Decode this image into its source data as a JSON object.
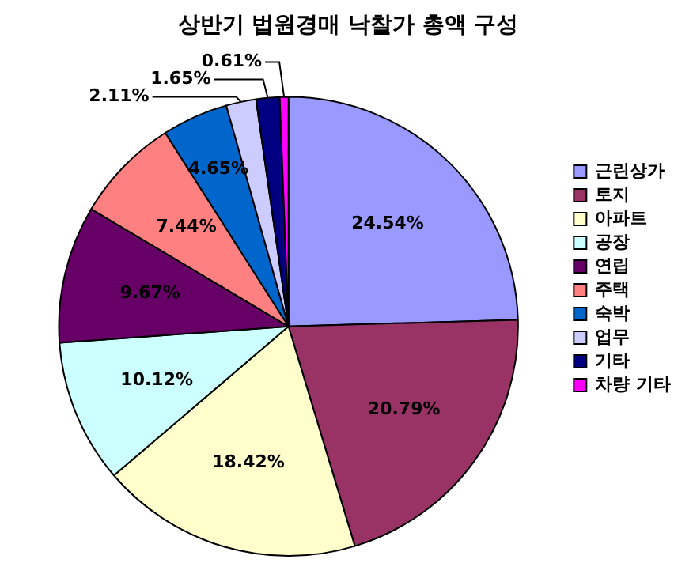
{
  "chart_data": {
    "type": "pie",
    "title": "상반기 법원경매 낙찰가 총액 구성",
    "categories": [
      "근린상가",
      "토지",
      "아파트",
      "공장",
      "연립",
      "주택",
      "숙박",
      "업무",
      "기타",
      "차량 기타"
    ],
    "values": [
      24.54,
      20.79,
      18.42,
      10.12,
      9.67,
      7.44,
      4.65,
      2.11,
      1.65,
      0.61
    ],
    "value_labels": [
      "24.54%",
      "20.79%",
      "18.42%",
      "10.12%",
      "9.67%",
      "7.44%",
      "4.65%",
      "2.11%",
      "1.65%",
      "0.61%"
    ],
    "colors": [
      "#9999ff",
      "#993366",
      "#ffffcc",
      "#ccffff",
      "#660066",
      "#ff8080",
      "#0066cc",
      "#ccccff",
      "#000080",
      "#ff00ff"
    ],
    "legend": "right"
  }
}
